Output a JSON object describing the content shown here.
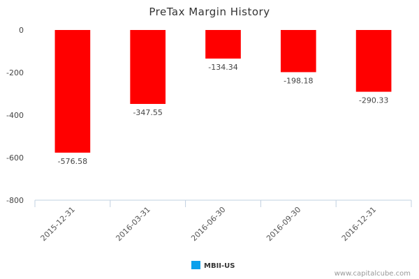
{
  "chart_data": {
    "type": "bar",
    "title": "PreTax Margin History",
    "categories": [
      "2015-12-31",
      "2016-03-31",
      "2016-06-30",
      "2016-09-30",
      "2016-12-31"
    ],
    "series": [
      {
        "name": "MBII-US",
        "values": [
          -576.58,
          -347.55,
          -134.34,
          -198.18,
          -290.33
        ],
        "color": "#ff0000"
      }
    ],
    "data_labels": [
      "-576.58",
      "-347.55",
      "-134.34",
      "-198.18",
      "-290.33"
    ],
    "xlabel": "",
    "ylabel": "",
    "ylim": [
      -800,
      0
    ],
    "yticks": [
      0,
      -200,
      -400,
      -600,
      -800
    ],
    "ytick_labels": [
      "0",
      "-200",
      "-400",
      "-600",
      "-800"
    ],
    "grid": false,
    "legend": {
      "position": "bottom-center",
      "color": "#0aa0ec"
    }
  },
  "source": "www.capitalcube.com"
}
